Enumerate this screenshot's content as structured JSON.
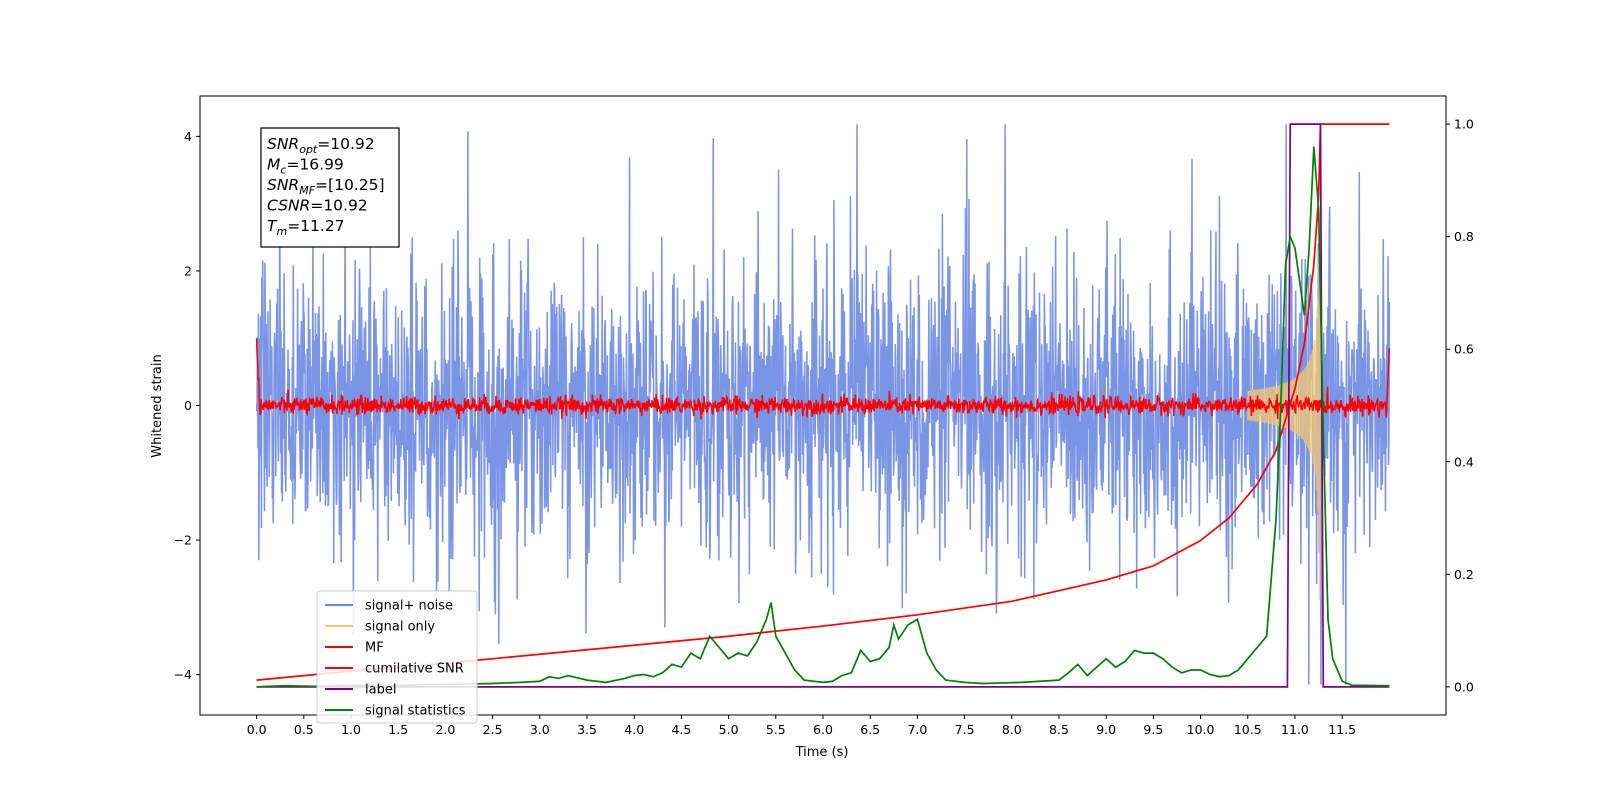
{
  "chart_data": {
    "type": "line",
    "xlabel": "Time (s)",
    "ylabel": "Whitened strain",
    "xlim": [
      -0.6,
      12.6
    ],
    "ylim_left": [
      -4.6,
      4.6
    ],
    "ylim_right": [
      -0.05,
      1.05
    ],
    "x_ticks": [
      "0.0",
      "0.5",
      "1.0",
      "1.5",
      "2.0",
      "2.5",
      "3.0",
      "3.5",
      "4.0",
      "4.5",
      "5.0",
      "5.5",
      "6.0",
      "6.5",
      "7.0",
      "7.5",
      "8.0",
      "8.5",
      "9.0",
      "9.5",
      "10.0",
      "10.5",
      "11.0",
      "11.5"
    ],
    "y_ticks_left": [
      "−4",
      "−2",
      "0",
      "2",
      "4"
    ],
    "y_ticks_right": [
      "0.0",
      "0.2",
      "0.4",
      "0.6",
      "0.8",
      "1.0"
    ],
    "legend_position": "lower-left",
    "series": [
      {
        "name": "signal+ noise",
        "color": "#6b88e3",
        "axis": "left",
        "x_range": [
          0.0,
          12.0
        ],
        "amplitude_std": 1.05,
        "min": -4.15,
        "max": 4.18
      },
      {
        "name": "signal only",
        "color": "#f5c871",
        "axis": "left",
        "x_range": [
          10.5,
          11.27
        ],
        "envelope_peak": 2.9
      },
      {
        "name": "MF",
        "color": "#ff0000",
        "axis": "left",
        "x_range": [
          0.0,
          12.0
        ],
        "level": 0.0,
        "noise_amplitude": 0.12,
        "start_value": 1.0,
        "end_value": 0.85
      },
      {
        "name": "cumilative SNR",
        "color": "#ff0000",
        "axis": "right",
        "x": [
          0.0,
          1.0,
          2.0,
          3.0,
          4.0,
          5.0,
          6.0,
          7.0,
          8.0,
          9.0,
          9.5,
          10.0,
          10.3,
          10.6,
          10.8,
          11.0,
          11.1,
          11.2,
          11.25,
          11.27,
          12.0
        ],
        "y": [
          0.012,
          0.028,
          0.042,
          0.058,
          0.074,
          0.09,
          0.108,
          0.128,
          0.152,
          0.19,
          0.215,
          0.26,
          0.3,
          0.36,
          0.42,
          0.53,
          0.61,
          0.75,
          0.87,
          1.0,
          1.0
        ]
      },
      {
        "name": "label",
        "color": "#800080",
        "axis": "right",
        "x": [
          0.0,
          10.92,
          10.95,
          11.27,
          11.3,
          12.0
        ],
        "y": [
          0.0,
          0.0,
          1.0,
          1.0,
          0.0,
          0.0
        ]
      },
      {
        "name": "signal statistics",
        "color": "#008000",
        "axis": "right",
        "x": [
          0.0,
          0.3,
          0.6,
          1.0,
          1.4,
          1.8,
          2.2,
          2.5,
          2.8,
          3.0,
          3.1,
          3.2,
          3.3,
          3.5,
          3.7,
          3.9,
          4.0,
          4.1,
          4.2,
          4.3,
          4.4,
          4.5,
          4.6,
          4.7,
          4.8,
          4.9,
          5.0,
          5.1,
          5.2,
          5.3,
          5.4,
          5.45,
          5.5,
          5.6,
          5.7,
          5.8,
          6.0,
          6.1,
          6.2,
          6.3,
          6.4,
          6.5,
          6.6,
          6.7,
          6.75,
          6.8,
          6.9,
          7.0,
          7.1,
          7.2,
          7.3,
          7.5,
          7.7,
          7.9,
          8.1,
          8.3,
          8.5,
          8.6,
          8.7,
          8.8,
          8.9,
          9.0,
          9.1,
          9.2,
          9.3,
          9.4,
          9.5,
          9.6,
          9.7,
          9.8,
          9.9,
          10.0,
          10.1,
          10.2,
          10.3,
          10.4,
          10.5,
          10.6,
          10.7,
          10.8,
          10.85,
          10.9,
          10.95,
          11.0,
          11.05,
          11.1,
          11.15,
          11.2,
          11.25,
          11.3,
          11.35,
          11.4,
          11.5,
          11.6,
          12.0
        ],
        "y": [
          0.0,
          0.002,
          0.001,
          0.003,
          0.002,
          0.004,
          0.005,
          0.006,
          0.008,
          0.01,
          0.018,
          0.015,
          0.02,
          0.012,
          0.008,
          0.015,
          0.02,
          0.022,
          0.018,
          0.025,
          0.04,
          0.035,
          0.06,
          0.05,
          0.09,
          0.07,
          0.05,
          0.06,
          0.055,
          0.08,
          0.12,
          0.15,
          0.09,
          0.06,
          0.03,
          0.012,
          0.008,
          0.01,
          0.02,
          0.025,
          0.065,
          0.045,
          0.05,
          0.07,
          0.11,
          0.085,
          0.11,
          0.12,
          0.06,
          0.03,
          0.012,
          0.008,
          0.006,
          0.007,
          0.008,
          0.01,
          0.012,
          0.025,
          0.04,
          0.02,
          0.035,
          0.05,
          0.035,
          0.045,
          0.065,
          0.06,
          0.06,
          0.05,
          0.035,
          0.025,
          0.03,
          0.03,
          0.022,
          0.018,
          0.02,
          0.03,
          0.05,
          0.07,
          0.09,
          0.3,
          0.5,
          0.75,
          0.8,
          0.78,
          0.72,
          0.66,
          0.78,
          0.96,
          0.85,
          0.45,
          0.12,
          0.05,
          0.01,
          0.003,
          0.002
        ]
      }
    ],
    "annotations": [
      {
        "label": "SNR",
        "sub": "opt",
        "value": "=10.92"
      },
      {
        "label": "M",
        "sub": "c",
        "value": "=16.99"
      },
      {
        "label": "SNR",
        "sub": "MF",
        "value": "=[10.25]"
      },
      {
        "label": "CSNR",
        "sub": "",
        "value": "=10.92"
      },
      {
        "label": "T",
        "sub": "m",
        "value": "=11.27"
      }
    ]
  }
}
